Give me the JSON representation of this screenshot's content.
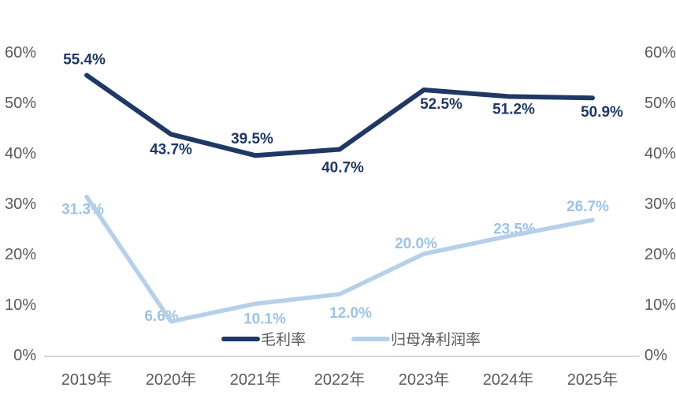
{
  "page": {
    "background_color": "#ffffff"
  },
  "chart_data": {
    "type": "line",
    "title": "",
    "categories": [
      "2019年",
      "2020年",
      "2021年",
      "2022年",
      "2023年",
      "2024年",
      "2025年"
    ],
    "series": [
      {
        "name": "毛利率",
        "color": "#1f3864",
        "label_color": "#1f3864",
        "values": [
          55.4,
          43.7,
          39.5,
          40.7,
          52.5,
          51.2,
          50.9
        ],
        "data_labels": [
          "55.4%",
          "43.7%",
          "39.5%",
          "40.7%",
          "52.5%",
          "51.2%",
          "50.9%"
        ]
      },
      {
        "name": "归母净利润率",
        "color": "#b7d0ea",
        "label_color": "#9dc3e6",
        "values": [
          31.3,
          6.6,
          10.1,
          12.0,
          20.0,
          23.5,
          26.7
        ],
        "data_labels": [
          "31.3%",
          "6.6%",
          "10.1%",
          "12.0%",
          "20.0%",
          "23.5%",
          "26.7%"
        ]
      }
    ],
    "ylim": [
      0,
      60
    ],
    "y_ticks": [
      "0%",
      "10%",
      "20%",
      "30%",
      "40%",
      "50%",
      "60%"
    ],
    "dual_axis": true,
    "grid": false,
    "legend_position": "bottom-center",
    "data_label_format": "0.0%",
    "colors": {
      "axis_line": "#d9d9d9",
      "tick_label": "#595959",
      "x_label": "#595959",
      "legend_text": "#595959"
    }
  }
}
